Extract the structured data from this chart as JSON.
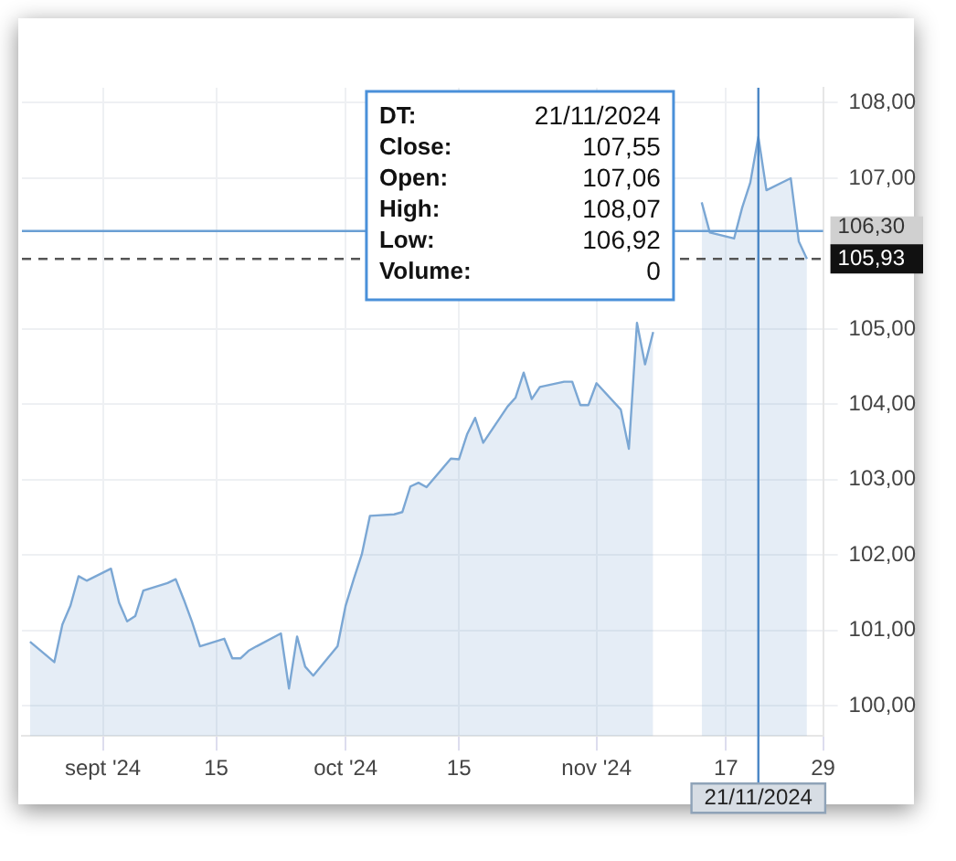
{
  "chart_data": {
    "type": "area",
    "x": [
      "2024-08-23",
      "2024-08-26",
      "2024-08-27",
      "2024-08-28",
      "2024-08-29",
      "2024-08-30",
      "2024-09-02",
      "2024-09-03",
      "2024-09-04",
      "2024-09-05",
      "2024-09-06",
      "2024-09-09",
      "2024-09-10",
      "2024-09-11",
      "2024-09-12",
      "2024-09-13",
      "2024-09-16",
      "2024-09-17",
      "2024-09-18",
      "2024-09-19",
      "2024-09-20",
      "2024-09-23",
      "2024-09-24",
      "2024-09-25",
      "2024-09-26",
      "2024-09-27",
      "2024-09-30",
      "2024-10-01",
      "2024-10-02",
      "2024-10-03",
      "2024-10-04",
      "2024-10-07",
      "2024-10-08",
      "2024-10-09",
      "2024-10-10",
      "2024-10-11",
      "2024-10-14",
      "2024-10-15",
      "2024-10-16",
      "2024-10-17",
      "2024-10-18",
      "2024-10-21",
      "2024-10-22",
      "2024-10-23",
      "2024-10-24",
      "2024-10-25",
      "2024-10-28",
      "2024-10-29",
      "2024-10-30",
      "2024-10-31",
      "2024-11-01",
      "2024-11-04",
      "2024-11-05",
      "2024-11-06",
      "2024-11-07",
      "2024-11-08",
      "2024-11-11",
      "2024-11-12",
      "2024-11-13",
      "2024-11-14",
      "2024-11-15",
      "2024-11-18",
      "2024-11-19",
      "2024-11-20",
      "2024-11-21",
      "2024-11-22",
      "2024-11-25",
      "2024-11-26",
      "2024-11-27"
    ],
    "series": [
      {
        "color": "#7ba7d4",
        "values": [
          100.85,
          100.58,
          101.08,
          101.33,
          101.72,
          101.66,
          101.82,
          101.37,
          101.12,
          101.19,
          101.53,
          101.63,
          101.68,
          101.41,
          101.12,
          100.79,
          100.89,
          100.63,
          100.63,
          100.73,
          100.79,
          100.96,
          100.23,
          100.92,
          100.52,
          100.4,
          100.79,
          101.33,
          101.68,
          102.01,
          102.52,
          102.54,
          102.57,
          102.91,
          102.96,
          102.9,
          103.28,
          103.27,
          103.6,
          103.82,
          103.49,
          103.97,
          104.09,
          104.42,
          104.07,
          104.23,
          104.3,
          104.3,
          103.99,
          103.99,
          104.28,
          103.93,
          103.41,
          105.08,
          104.53,
          104.96,
          null,
          null,
          null,
          106.68,
          106.28,
          106.2,
          106.61,
          106.94,
          107.55,
          106.84,
          107.0,
          106.16,
          105.93
        ]
      }
    ],
    "xlim": [
      "2024-08-22",
      "2024-11-29"
    ],
    "xticks": [
      {
        "value": "2024-09-01",
        "label": "sept '24"
      },
      {
        "value": "2024-09-15",
        "label": "15"
      },
      {
        "value": "2024-10-01",
        "label": "oct '24"
      },
      {
        "value": "2024-10-15",
        "label": "15"
      },
      {
        "value": "2024-11-01",
        "label": "nov '24"
      },
      {
        "value": "2024-11-17",
        "label": "17"
      },
      {
        "value": "2024-11-29",
        "label": "29"
      }
    ],
    "ylim": [
      99.6,
      108.2
    ],
    "yticks": [
      {
        "value": 100,
        "label": "100,00"
      },
      {
        "value": 101,
        "label": "101,00"
      },
      {
        "value": 102,
        "label": "102,00"
      },
      {
        "value": 103,
        "label": "103,00"
      },
      {
        "value": 104,
        "label": "104,00"
      },
      {
        "value": 105,
        "label": "105,00"
      },
      {
        "value": 107,
        "label": "107,00"
      },
      {
        "value": 108,
        "label": "108,00"
      }
    ],
    "grid": true,
    "ref_lines": [
      {
        "axis": "y",
        "value": 106.3,
        "label": "106,30",
        "color": "#6a9fd4",
        "line_style": "solid"
      },
      {
        "axis": "y",
        "value": 105.93,
        "label": "105,93",
        "color": "#555555",
        "line_style": "dashed"
      },
      {
        "axis": "x",
        "value": "2024-11-21",
        "label": "21/11/2024",
        "color": "#4a86c5",
        "line_style": "solid"
      }
    ],
    "annotations": [
      "DT:",
      "21/11/2024",
      "Close:",
      "107,55",
      "Open:",
      "107,06",
      "High:",
      "108,07",
      "Low:",
      "106,92",
      "Volume:",
      "0"
    ]
  }
}
